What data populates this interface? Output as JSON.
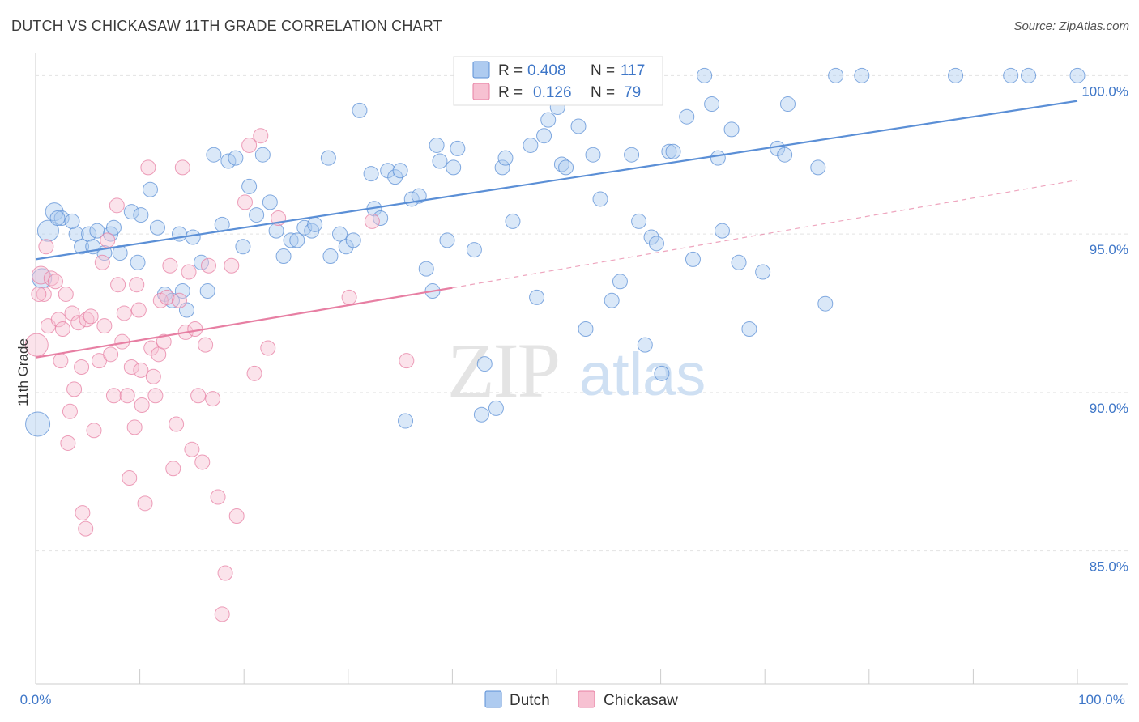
{
  "title": "DUTCH VS CHICKASAW 11TH GRADE CORRELATION CHART",
  "source": "Source: ZipAtlas.com",
  "watermark": {
    "zip": "ZIP",
    "atlas": "atlas"
  },
  "legend": {
    "r_label": "R =",
    "n_label": "N =",
    "rows": [
      {
        "series": "Dutch",
        "r": "0.408",
        "n": "117",
        "fill": "#aecbf0",
        "stroke": "#5b8fd6"
      },
      {
        "series": "Chickasaw",
        "r": "0.126",
        "n": "79",
        "fill": "#f7c1d2",
        "stroke": "#e77fa3"
      }
    ]
  },
  "chart_data": {
    "type": "scatter",
    "title": "DUTCH VS CHICKASAW 11TH GRADE CORRELATION CHART",
    "xlabel": "",
    "ylabel": "11th Grade",
    "xlim": [
      0,
      100
    ],
    "ylim": [
      80.8,
      100.8
    ],
    "x_tick_labels": [
      "0.0%",
      "100.0%"
    ],
    "y_ticks": [
      85,
      90,
      95,
      100
    ],
    "y_tick_labels": [
      "85.0%",
      "90.0%",
      "95.0%",
      "100.0%"
    ],
    "grid": true,
    "legend_position": "top-center",
    "series": [
      {
        "name": "Dutch",
        "color": "#5b8fd6",
        "fill": "#aecbf0",
        "trend": {
          "x": [
            0,
            100
          ],
          "y": [
            94.2,
            99.2
          ],
          "style": "solid"
        },
        "points": [
          [
            1.2,
            95.1
          ],
          [
            1.8,
            95.7
          ],
          [
            2.5,
            95.5
          ],
          [
            3.9,
            95.0
          ],
          [
            4.4,
            94.6
          ],
          [
            5.1,
            95.0
          ],
          [
            5.9,
            95.1
          ],
          [
            6.6,
            94.4
          ],
          [
            7.2,
            95.0
          ],
          [
            7.5,
            95.2
          ],
          [
            8.1,
            94.4
          ],
          [
            9.2,
            95.7
          ],
          [
            10.1,
            95.6
          ],
          [
            11.0,
            96.4
          ],
          [
            11.7,
            95.2
          ],
          [
            12.4,
            93.1
          ],
          [
            13.1,
            92.9
          ],
          [
            13.8,
            95.0
          ],
          [
            14.5,
            92.6
          ],
          [
            15.1,
            94.9
          ],
          [
            15.9,
            94.1
          ],
          [
            16.5,
            93.2
          ],
          [
            17.1,
            97.5
          ],
          [
            17.9,
            95.3
          ],
          [
            18.5,
            97.3
          ],
          [
            19.2,
            97.4
          ],
          [
            19.9,
            94.6
          ],
          [
            20.5,
            96.5
          ],
          [
            21.2,
            95.6
          ],
          [
            21.8,
            97.5
          ],
          [
            22.5,
            96.0
          ],
          [
            23.1,
            95.1
          ],
          [
            23.8,
            94.3
          ],
          [
            24.5,
            94.8
          ],
          [
            25.1,
            94.8
          ],
          [
            25.8,
            95.2
          ],
          [
            26.5,
            95.1
          ],
          [
            28.1,
            97.4
          ],
          [
            28.3,
            94.3
          ],
          [
            29.2,
            95.0
          ],
          [
            29.8,
            94.6
          ],
          [
            30.5,
            94.8
          ],
          [
            31.1,
            98.9
          ],
          [
            32.2,
            96.9
          ],
          [
            32.5,
            95.8
          ],
          [
            33.1,
            95.5
          ],
          [
            33.8,
            97.0
          ],
          [
            34.5,
            96.8
          ],
          [
            35.0,
            97.0
          ],
          [
            35.5,
            89.1
          ],
          [
            36.1,
            96.1
          ],
          [
            36.8,
            96.2
          ],
          [
            37.5,
            93.9
          ],
          [
            38.1,
            93.2
          ],
          [
            38.5,
            97.8
          ],
          [
            38.8,
            97.3
          ],
          [
            39.5,
            94.8
          ],
          [
            40.1,
            97.1
          ],
          [
            40.5,
            97.7
          ],
          [
            41.5,
            99.6
          ],
          [
            42.1,
            94.5
          ],
          [
            42.8,
            89.3
          ],
          [
            43.1,
            90.9
          ],
          [
            44.2,
            89.5
          ],
          [
            44.8,
            97.1
          ],
          [
            45.1,
            97.4
          ],
          [
            45.8,
            95.4
          ],
          [
            48.1,
            93.0
          ],
          [
            48.8,
            98.1
          ],
          [
            49.2,
            98.6
          ],
          [
            50.1,
            99.0
          ],
          [
            50.5,
            97.2
          ],
          [
            50.9,
            97.1
          ],
          [
            52.1,
            98.4
          ],
          [
            52.8,
            92.0
          ],
          [
            53.5,
            97.5
          ],
          [
            54.2,
            96.1
          ],
          [
            55.3,
            92.9
          ],
          [
            56.1,
            93.5
          ],
          [
            57.2,
            97.5
          ],
          [
            57.9,
            95.4
          ],
          [
            58.5,
            91.5
          ],
          [
            59.1,
            94.9
          ],
          [
            60.1,
            90.6
          ],
          [
            60.8,
            97.6
          ],
          [
            61.2,
            97.6
          ],
          [
            62.5,
            98.7
          ],
          [
            63.1,
            94.2
          ],
          [
            64.2,
            100.0
          ],
          [
            64.9,
            99.1
          ],
          [
            65.5,
            97.4
          ],
          [
            65.9,
            95.1
          ],
          [
            66.8,
            98.3
          ],
          [
            67.5,
            94.1
          ],
          [
            68.5,
            92.0
          ],
          [
            69.8,
            93.8
          ],
          [
            71.2,
            97.7
          ],
          [
            71.9,
            97.5
          ],
          [
            72.2,
            99.1
          ],
          [
            75.1,
            97.1
          ],
          [
            75.8,
            92.8
          ],
          [
            76.8,
            100.0
          ],
          [
            79.3,
            100.0
          ],
          [
            88.3,
            100.0
          ],
          [
            93.6,
            100.0
          ],
          [
            95.3,
            100.0
          ],
          [
            100.0,
            100.0
          ],
          [
            0.2,
            89.0
          ],
          [
            0.6,
            93.6
          ],
          [
            2.1,
            95.5
          ],
          [
            3.5,
            95.4
          ],
          [
            5.5,
            94.6
          ],
          [
            9.8,
            94.1
          ],
          [
            14.1,
            93.2
          ],
          [
            26.8,
            95.3
          ],
          [
            47.5,
            97.8
          ],
          [
            59.6,
            94.7
          ]
        ]
      },
      {
        "name": "Chickasaw",
        "color": "#e77fa3",
        "fill": "#f7c1d2",
        "trend": {
          "x": [
            0,
            40
          ],
          "y": [
            91.1,
            93.3
          ],
          "style": "solid",
          "dash_extension_to": [
            100,
            96.7
          ]
        },
        "points": [
          [
            0.1,
            91.5
          ],
          [
            0.5,
            93.7
          ],
          [
            0.8,
            93.1
          ],
          [
            1.0,
            94.6
          ],
          [
            1.2,
            92.1
          ],
          [
            1.5,
            93.6
          ],
          [
            1.9,
            93.5
          ],
          [
            2.2,
            92.3
          ],
          [
            2.4,
            91.0
          ],
          [
            2.6,
            92.0
          ],
          [
            2.9,
            93.1
          ],
          [
            3.1,
            88.4
          ],
          [
            3.5,
            92.5
          ],
          [
            3.7,
            90.1
          ],
          [
            4.1,
            92.2
          ],
          [
            4.4,
            90.8
          ],
          [
            4.5,
            86.2
          ],
          [
            4.8,
            85.7
          ],
          [
            4.9,
            92.3
          ],
          [
            5.3,
            92.4
          ],
          [
            5.6,
            88.8
          ],
          [
            6.1,
            91.0
          ],
          [
            6.4,
            94.1
          ],
          [
            6.6,
            92.1
          ],
          [
            6.9,
            94.8
          ],
          [
            7.2,
            91.2
          ],
          [
            7.5,
            89.9
          ],
          [
            7.8,
            95.9
          ],
          [
            7.9,
            93.4
          ],
          [
            8.3,
            91.6
          ],
          [
            8.5,
            92.5
          ],
          [
            8.8,
            89.9
          ],
          [
            9.0,
            87.3
          ],
          [
            9.2,
            90.8
          ],
          [
            9.5,
            88.9
          ],
          [
            9.7,
            93.4
          ],
          [
            9.9,
            92.6
          ],
          [
            10.2,
            89.6
          ],
          [
            10.5,
            86.5
          ],
          [
            10.8,
            97.1
          ],
          [
            11.1,
            91.4
          ],
          [
            11.3,
            90.5
          ],
          [
            11.5,
            89.9
          ],
          [
            11.8,
            91.2
          ],
          [
            12.0,
            92.9
          ],
          [
            12.3,
            91.6
          ],
          [
            12.6,
            93.0
          ],
          [
            12.9,
            94.0
          ],
          [
            13.2,
            87.6
          ],
          [
            13.5,
            89.0
          ],
          [
            13.8,
            92.9
          ],
          [
            14.1,
            97.1
          ],
          [
            14.4,
            91.9
          ],
          [
            14.7,
            93.8
          ],
          [
            15.0,
            88.2
          ],
          [
            15.3,
            92.0
          ],
          [
            15.6,
            89.9
          ],
          [
            16.0,
            87.8
          ],
          [
            16.3,
            91.5
          ],
          [
            16.6,
            94.0
          ],
          [
            17.0,
            89.8
          ],
          [
            17.5,
            86.7
          ],
          [
            17.9,
            83.0
          ],
          [
            18.2,
            84.3
          ],
          [
            18.8,
            94.0
          ],
          [
            19.3,
            86.1
          ],
          [
            20.1,
            96.0
          ],
          [
            20.5,
            97.8
          ],
          [
            21.0,
            90.6
          ],
          [
            21.6,
            98.1
          ],
          [
            22.3,
            91.4
          ],
          [
            23.3,
            95.5
          ],
          [
            30.1,
            93.0
          ],
          [
            32.3,
            95.4
          ],
          [
            35.6,
            91.0
          ],
          [
            45.1,
            100.0
          ],
          [
            0.3,
            93.1
          ],
          [
            3.3,
            89.4
          ],
          [
            10.1,
            90.7
          ]
        ]
      }
    ]
  }
}
